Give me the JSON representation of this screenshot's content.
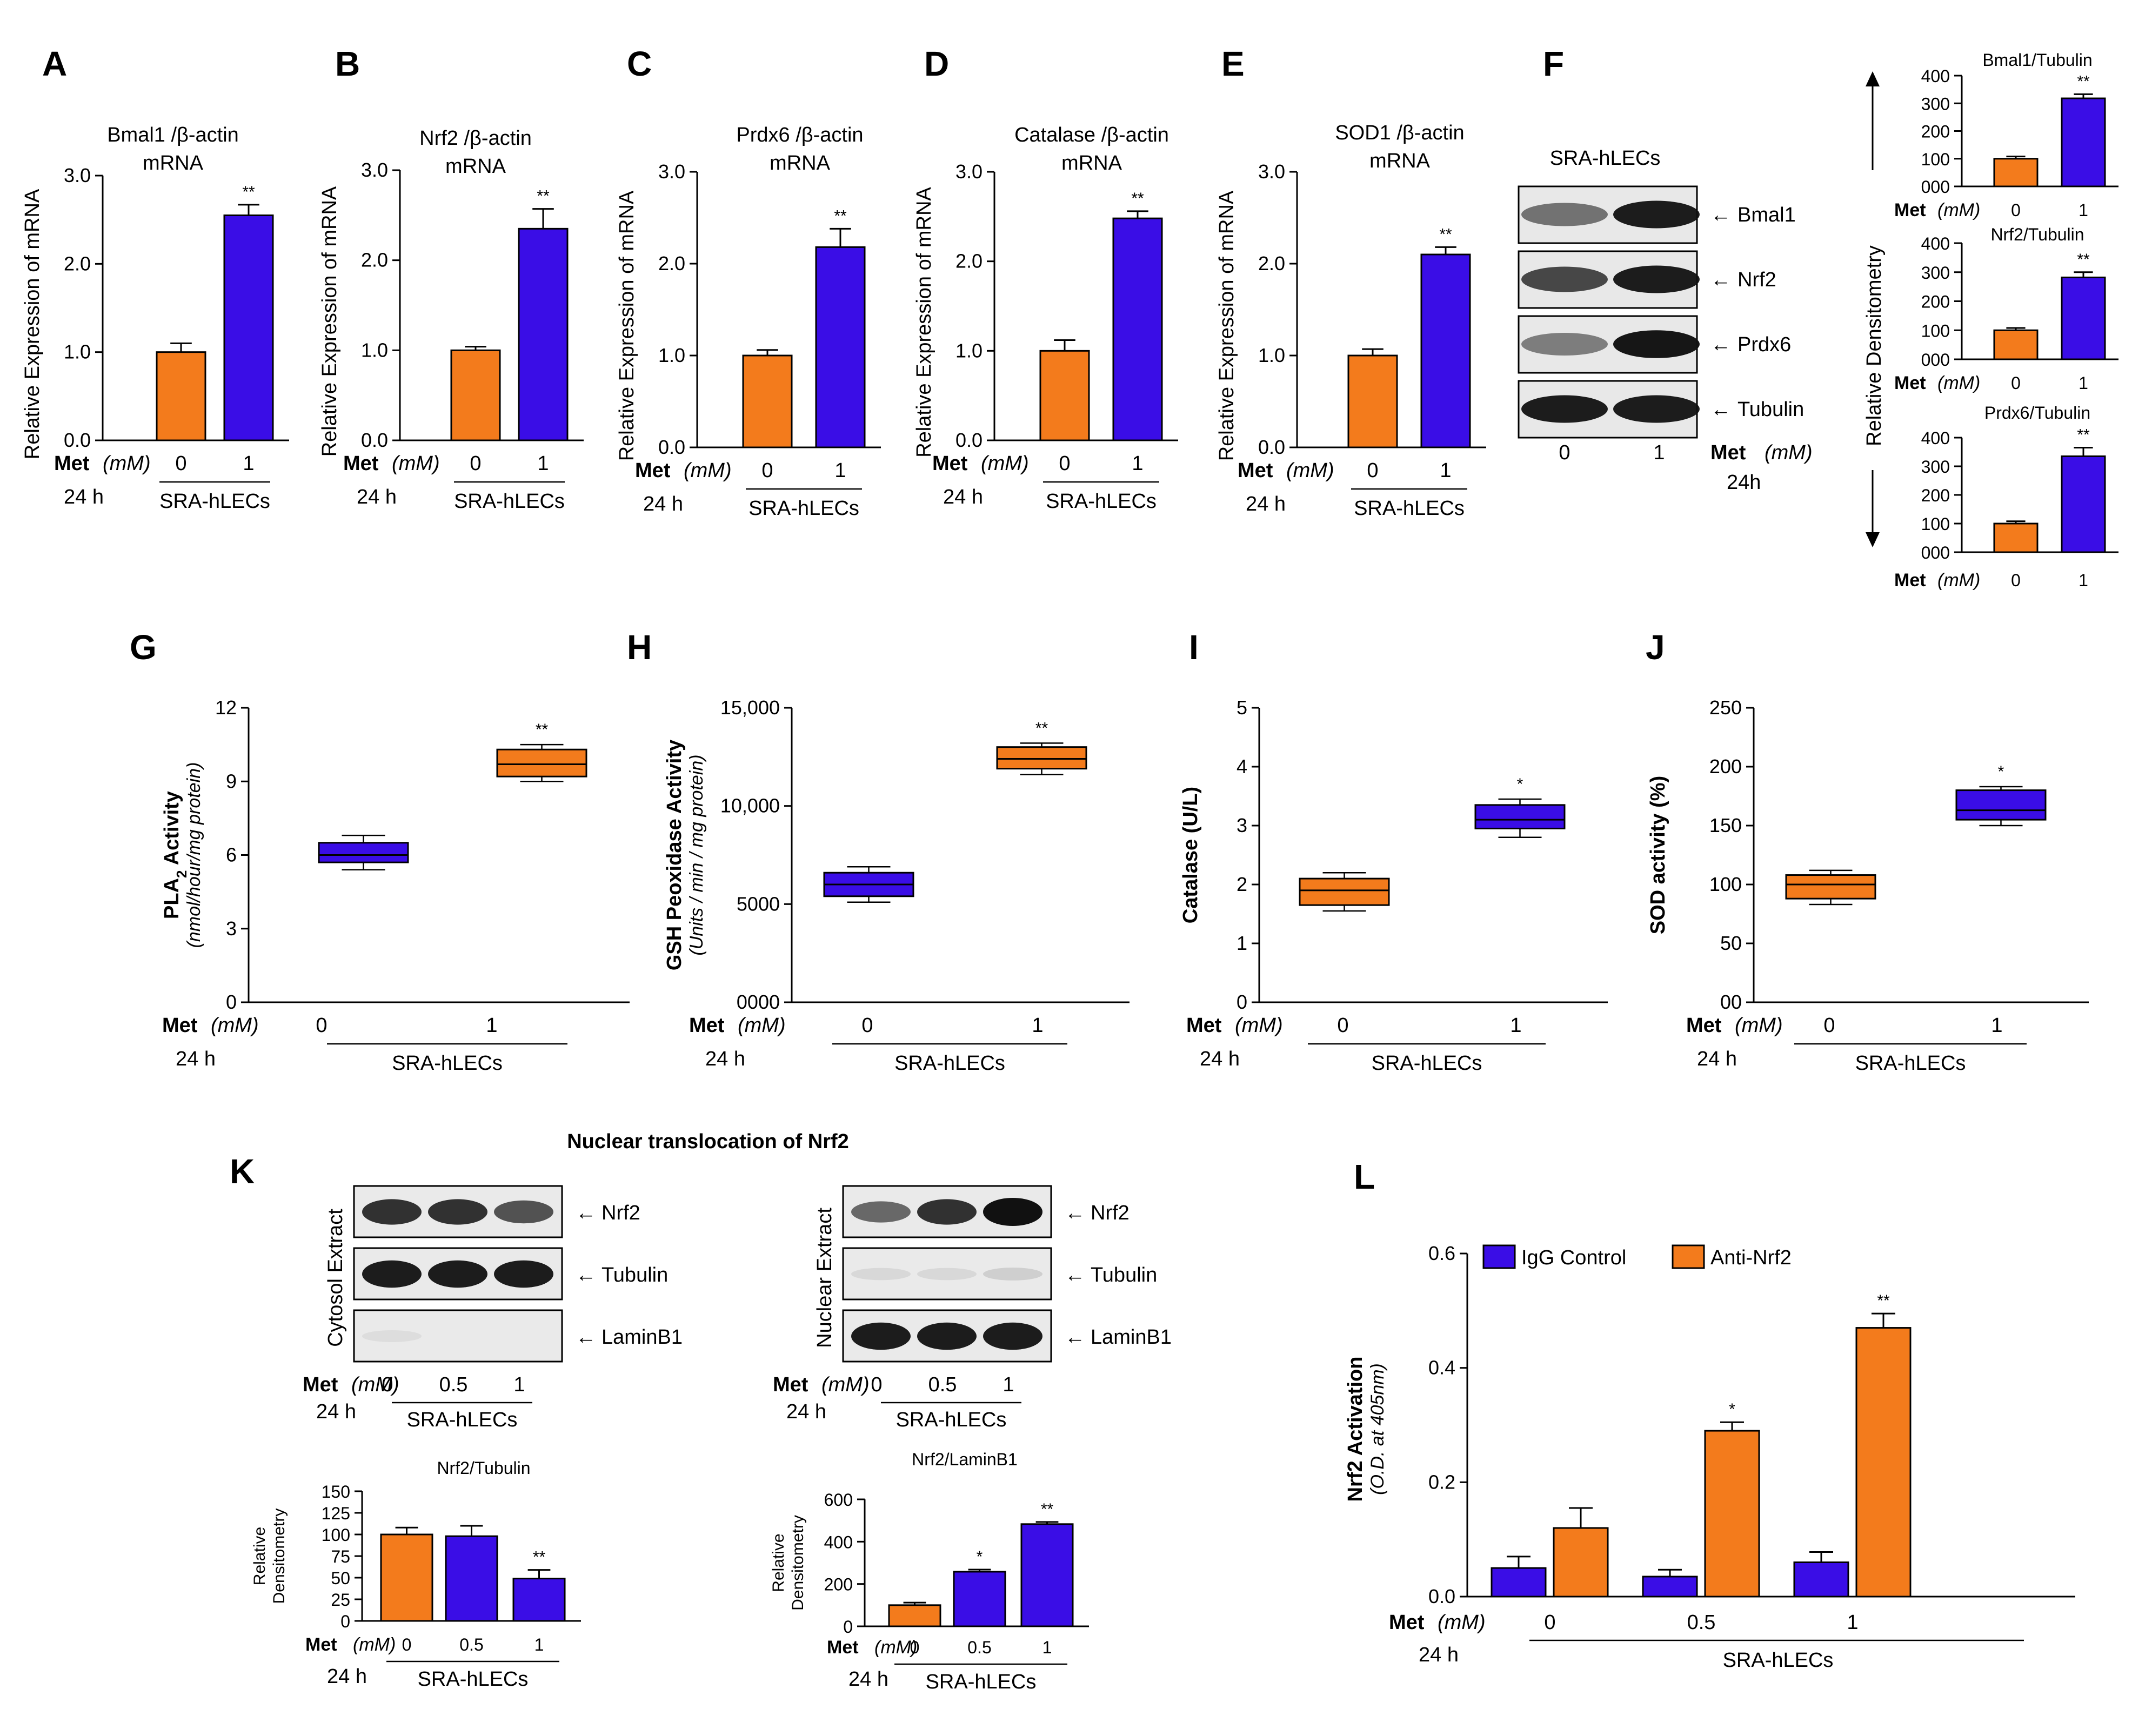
{
  "colors": {
    "orange": "#F37B1C",
    "blue": "#3A0DE6",
    "met": "#3A0DE6",
    "axis": "#000000"
  },
  "panel_labels": [
    "A",
    "B",
    "C",
    "D",
    "E",
    "F",
    "G",
    "H",
    "I",
    "J",
    "K",
    "L"
  ],
  "common": {
    "met_label": "Met",
    "mm_label": "(mM)",
    "time_24h": "24 h",
    "time_24h_f": "24h",
    "cell_line": "SRA-hLECs",
    "ylabel_mrna": "Relative Expression of mRNA",
    "arrow": "←"
  },
  "chart_data": [
    {
      "id": "A",
      "type": "bar",
      "title_lines": [
        "Bmal1 /β-actin",
        "mRNA"
      ],
      "ylabel": "Relative Expression of mRNA",
      "categories": [
        "0",
        "1"
      ],
      "values": [
        1.0,
        2.55
      ],
      "errors": [
        0.1,
        0.12
      ],
      "sig": [
        "",
        "**"
      ],
      "ylim": [
        0,
        3
      ],
      "yticks": [
        "0.0",
        "1.0",
        "2.0",
        "3.0"
      ]
    },
    {
      "id": "B",
      "type": "bar",
      "title_lines": [
        "Nrf2 /β-actin",
        "mRNA"
      ],
      "ylabel": "Relative Expression of mRNA",
      "categories": [
        "0",
        "1"
      ],
      "values": [
        1.0,
        2.35
      ],
      "errors": [
        0.04,
        0.22
      ],
      "sig": [
        "",
        "**"
      ],
      "ylim": [
        0,
        3
      ],
      "yticks": [
        "0.0",
        "1.0",
        "2.0",
        "3.0"
      ]
    },
    {
      "id": "C",
      "type": "bar",
      "title_lines": [
        "Prdx6 /β-actin",
        "mRNA"
      ],
      "ylabel": "Relative Expression  of mRNA",
      "categories": [
        "0",
        "1"
      ],
      "values": [
        1.0,
        2.18
      ],
      "errors": [
        0.06,
        0.2
      ],
      "sig": [
        "",
        "**"
      ],
      "ylim": [
        0,
        3
      ],
      "yticks": [
        "0.0",
        "1.0",
        "2.0",
        "3.0"
      ]
    },
    {
      "id": "D",
      "type": "bar",
      "title_lines": [
        "Catalase /β-actin",
        "mRNA"
      ],
      "ylabel": "Relative Expression of mRNA",
      "categories": [
        "0",
        "1"
      ],
      "values": [
        1.0,
        2.48
      ],
      "errors": [
        0.12,
        0.08
      ],
      "sig": [
        "",
        "**"
      ],
      "ylim": [
        0,
        3
      ],
      "yticks": [
        "0.0",
        "1.0",
        "2.0",
        "3.0"
      ]
    },
    {
      "id": "E",
      "type": "bar",
      "title_lines": [
        "SOD1 /β-actin",
        "mRNA"
      ],
      "ylabel": "Relative Expression  of mRNA",
      "categories": [
        "0",
        "1"
      ],
      "values": [
        1.0,
        2.1
      ],
      "errors": [
        0.07,
        0.08
      ],
      "sig": [
        "",
        "**"
      ],
      "ylim": [
        0,
        3
      ],
      "yticks": [
        "0.0",
        "1.0",
        "2.0",
        "3.0"
      ]
    },
    {
      "id": "F1",
      "type": "bar",
      "title": "Bmal1/Tubulin",
      "categories": [
        "0",
        "1"
      ],
      "values": [
        100,
        318
      ],
      "errors": [
        8,
        15
      ],
      "sig": [
        "",
        "**"
      ],
      "ylim": [
        0,
        400
      ],
      "yticks": [
        "000",
        "100",
        "200",
        "300",
        "400"
      ]
    },
    {
      "id": "F2",
      "type": "bar",
      "title": "Nrf2/Tubulin",
      "categories": [
        "0",
        "1"
      ],
      "values": [
        100,
        282
      ],
      "errors": [
        8,
        18
      ],
      "sig": [
        "",
        "**"
      ],
      "ylim": [
        0,
        400
      ],
      "yticks": [
        "000",
        "100",
        "200",
        "300",
        "400"
      ]
    },
    {
      "id": "F3",
      "type": "bar",
      "title": "Prdx6/Tubulin",
      "categories": [
        "0",
        "1"
      ],
      "values": [
        100,
        335
      ],
      "errors": [
        8,
        30
      ],
      "sig": [
        "",
        "**"
      ],
      "ylim": [
        0,
        400
      ],
      "yticks": [
        "000",
        "100",
        "200",
        "300",
        "400"
      ]
    },
    {
      "id": "G",
      "type": "box",
      "ylabel": "PLA",
      "ylabel_sub": "2",
      "ylabel_tail": " Activity",
      "ylabel2": "(nmol/hour/mg protein)",
      "categories": [
        "0",
        "1"
      ],
      "boxes": [
        {
          "min": 5.4,
          "q1": 5.7,
          "median": 6.0,
          "q3": 6.5,
          "max": 6.8
        },
        {
          "min": 9.0,
          "q1": 9.2,
          "median": 9.7,
          "q3": 10.3,
          "max": 10.5
        }
      ],
      "sig": [
        "",
        "**"
      ],
      "ylim": [
        0,
        12
      ],
      "yticks": [
        "0",
        "3",
        "6",
        "9",
        "12"
      ]
    },
    {
      "id": "H",
      "type": "box",
      "ylabel": "GSH Peoxidase Activity",
      "ylabel2": "(Units / min / mg protein)",
      "categories": [
        "0",
        "1"
      ],
      "boxes": [
        {
          "min": 5100,
          "q1": 5400,
          "median": 6000,
          "q3": 6600,
          "max": 6900
        },
        {
          "min": 11600,
          "q1": 11900,
          "median": 12400,
          "q3": 13000,
          "max": 13200
        }
      ],
      "sig": [
        "",
        "**"
      ],
      "ylim": [
        0,
        15000
      ],
      "yticks": [
        "0000",
        "5000",
        "10,000",
        "15,000"
      ]
    },
    {
      "id": "I",
      "type": "box",
      "ylabel": "Catalase (U/L)",
      "categories": [
        "0",
        "1"
      ],
      "boxes": [
        {
          "min": 1.55,
          "q1": 1.65,
          "median": 1.9,
          "q3": 2.1,
          "max": 2.2
        },
        {
          "min": 2.8,
          "q1": 2.95,
          "median": 3.1,
          "q3": 3.35,
          "max": 3.45
        }
      ],
      "sig": [
        "",
        "*"
      ],
      "ylim": [
        0,
        5
      ],
      "yticks": [
        "0",
        "1",
        "2",
        "3",
        "4",
        "5"
      ]
    },
    {
      "id": "J",
      "type": "box",
      "ylabel": "SOD activity (%)",
      "categories": [
        "0",
        "1"
      ],
      "boxes": [
        {
          "min": 83,
          "q1": 88,
          "median": 100,
          "q3": 108,
          "max": 112
        },
        {
          "min": 150,
          "q1": 155,
          "median": 163,
          "q3": 180,
          "max": 183
        }
      ],
      "sig": [
        "",
        "*"
      ],
      "ylim": [
        0,
        250
      ],
      "yticks": [
        "00",
        "50",
        "100",
        "150",
        "200",
        "250"
      ]
    },
    {
      "id": "K1",
      "type": "bar",
      "title": "Nrf2/Tubulin",
      "ylabel_lines": [
        "Relative",
        "Densitometry"
      ],
      "categories": [
        "0",
        "0.5",
        "1"
      ],
      "values": [
        100,
        98,
        49
      ],
      "errors": [
        8,
        12,
        10
      ],
      "sig": [
        "",
        "",
        "**"
      ],
      "ylim": [
        0,
        150
      ],
      "yticks": [
        "0",
        "25",
        "50",
        "75",
        "100",
        "125",
        "150"
      ]
    },
    {
      "id": "K2",
      "type": "bar",
      "title": "Nrf2/LaminB1",
      "ylabel_lines": [
        "Relative",
        "Densitometry"
      ],
      "categories": [
        "0",
        "0.5",
        "1"
      ],
      "values": [
        100,
        258,
        483
      ],
      "errors": [
        12,
        10,
        10
      ],
      "sig": [
        "",
        "*",
        "**"
      ],
      "ylim": [
        0,
        600
      ],
      "yticks": [
        "0",
        "200",
        "400",
        "600"
      ]
    },
    {
      "id": "L",
      "type": "bar",
      "ylabel": "Nrf2 Activation",
      "ylabel2": "(O.D. at 405nm)",
      "categories": [
        "0",
        "0.5",
        "1"
      ],
      "series": [
        {
          "name": "IgG Control",
          "values": [
            0.05,
            0.035,
            0.06
          ],
          "errors": [
            0.02,
            0.012,
            0.018
          ]
        },
        {
          "name": "Anti-Nrf2",
          "values": [
            0.12,
            0.29,
            0.47
          ],
          "errors": [
            0.035,
            0.015,
            0.025
          ]
        }
      ],
      "sig": [
        [
          "",
          ""
        ],
        [
          "",
          "*"
        ],
        [
          "",
          "**"
        ]
      ],
      "ylim": [
        0,
        0.6
      ],
      "yticks": [
        "0.0",
        "0.2",
        "0.4",
        "0.6"
      ]
    }
  ],
  "blots": {
    "F": {
      "header": "SRA-hLECs",
      "rows": [
        "Bmal1",
        "Nrf2",
        "Prdx6",
        "Tubulin"
      ],
      "lanes": [
        "0",
        "1"
      ],
      "side_label": "Relative Densitometry"
    },
    "K": {
      "title": "Nuclear translocation of Nrf2",
      "cytosol": {
        "side_label": "Cytosol Extract",
        "rows": [
          "Nrf2",
          "Tubulin",
          "LaminB1"
        ]
      },
      "nuclear": {
        "side_label": "Nuclear Extract",
        "rows": [
          "Nrf2",
          "Tubulin",
          "LaminB1"
        ]
      },
      "lanes": [
        "0",
        "0.5",
        "1"
      ]
    }
  }
}
